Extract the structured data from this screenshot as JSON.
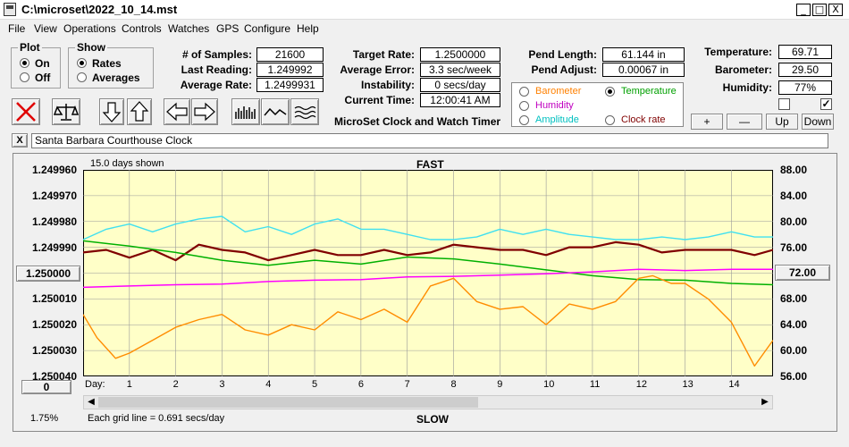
{
  "window": {
    "title": "C:\\microset\\2022_10_14.mst",
    "min_glyph": "_",
    "max_glyph": "□",
    "close_glyph": "X"
  },
  "menu": [
    "File",
    "View",
    "Operations",
    "Controls",
    "Watches",
    "GPS",
    "Configure",
    "Help"
  ],
  "plot_group": {
    "label": "Plot",
    "options": [
      "On",
      "Off"
    ],
    "selected": "On"
  },
  "show_group": {
    "label": "Show",
    "options": [
      "Rates",
      "Averages"
    ],
    "selected": "Rates"
  },
  "stats": {
    "samples_label": "# of Samples:",
    "samples": "21600",
    "last_label": "Last Reading:",
    "last": "1.249992",
    "avg_rate_label": "Average Rate:",
    "avg_rate": "1.2499931",
    "target_label": "Target Rate:",
    "target": "1.2500000",
    "avg_err_label": "Average Error:",
    "avg_err": "3.3 sec/week",
    "instab_label": "Instability:",
    "instab": "0 secs/day",
    "time_label": "Current Time:",
    "time": "12:00:41 AM",
    "pend_len_label": "Pend Length:",
    "pend_len": "61.144 in",
    "pend_adj_label": "Pend Adjust:",
    "pend_adj": "0.00067 in",
    "temp_label": "Temperature:",
    "temp": "69.71",
    "baro_label": "Barometer:",
    "baro": "29.50",
    "humid_label": "Humidity:",
    "humid": "77%"
  },
  "app_title": "MicroSet Clock and Watch Timer",
  "sensor_options": [
    {
      "label": "Barometer",
      "color": "#ff8000",
      "selected": false
    },
    {
      "label": "Temperature",
      "color": "#00a000",
      "selected": true
    },
    {
      "label": "Humidity",
      "color": "#c000c0",
      "selected": false
    },
    {
      "label": "Amplitude",
      "color": "#00c0c0",
      "selected": false
    },
    {
      "label": "Clock rate",
      "color": "#800000",
      "selected": false
    }
  ],
  "scale_buttons": [
    "+",
    "—",
    "Up",
    "Down"
  ],
  "checkboxes": [
    false,
    true
  ],
  "clock_name": "Santa Barbara Courthouse Clock",
  "chart_panel": {
    "days_shown": "15.0 days shown",
    "top_label": "FAST",
    "bottom_label": "SLOW",
    "grid_note": "Each grid line = 0.691 secs/day",
    "day_label": "Day:",
    "left_button": "1.250000",
    "right_button": "72.00",
    "offset_button": "0",
    "percent": "1.75%"
  },
  "colors": {
    "plot_bg": "#ffffc8",
    "rate": "#800000",
    "temperature": "#00b000",
    "humidity": "#ff00ff",
    "amplitude": "#40e0f0",
    "barometer": "#ff8c00"
  },
  "chart_data": {
    "type": "line",
    "x_label": "Day:",
    "x_ticks": [
      1,
      2,
      3,
      4,
      5,
      6,
      7,
      8,
      9,
      10,
      11,
      12,
      13,
      14
    ],
    "xlim": [
      0,
      14.9
    ],
    "y_left_ticks": [
      "1.249960",
      "1.249970",
      "1.249980",
      "1.249990",
      "1.250000",
      "1.250010",
      "1.250020",
      "1.250030",
      "1.250040"
    ],
    "ylim_left": [
      1.24996,
      1.25004
    ],
    "y_right_ticks": [
      "88.00",
      "84.00",
      "80.00",
      "76.00",
      "72.00",
      "68.00",
      "64.00",
      "60.00",
      "56.00"
    ],
    "ylim_right": [
      56,
      88
    ],
    "grid": true,
    "series": [
      {
        "name": "Amplitude",
        "axis": "left",
        "x": [
          0,
          0.5,
          1,
          1.5,
          2,
          2.5,
          3,
          3.5,
          4,
          4.5,
          5,
          5.5,
          6,
          6.5,
          7,
          7.5,
          8,
          8.5,
          9,
          9.5,
          10,
          10.5,
          11,
          11.5,
          12,
          12.5,
          13,
          13.5,
          14,
          14.5,
          14.9
        ],
        "y": [
          1.249987,
          1.249983,
          1.249981,
          1.249984,
          1.249981,
          1.249979,
          1.249978,
          1.249984,
          1.249982,
          1.249985,
          1.249981,
          1.249979,
          1.249983,
          1.249983,
          1.249985,
          1.249987,
          1.249987,
          1.249986,
          1.249983,
          1.249985,
          1.249983,
          1.249985,
          1.249986,
          1.249987,
          1.249987,
          1.249986,
          1.249987,
          1.249986,
          1.249984,
          1.249986,
          1.249986
        ]
      },
      {
        "name": "Clock rate",
        "axis": "left",
        "x": [
          0,
          0.5,
          1,
          1.5,
          2,
          2.5,
          3,
          3.5,
          4,
          4.5,
          5,
          5.5,
          6,
          6.5,
          7,
          7.5,
          8,
          8.5,
          9,
          9.5,
          10,
          10.5,
          11,
          11.5,
          12,
          12.5,
          13,
          13.5,
          14,
          14.5,
          14.9
        ],
        "y": [
          1.249992,
          1.249991,
          1.249994,
          1.249991,
          1.249995,
          1.249989,
          1.249991,
          1.249992,
          1.249995,
          1.249993,
          1.249991,
          1.249993,
          1.249993,
          1.249991,
          1.249993,
          1.249992,
          1.249989,
          1.24999,
          1.249991,
          1.249991,
          1.249993,
          1.24999,
          1.24999,
          1.249988,
          1.249989,
          1.249992,
          1.249991,
          1.249991,
          1.249991,
          1.249993,
          1.249991
        ]
      },
      {
        "name": "Temperature",
        "axis": "right",
        "x": [
          0,
          1,
          2,
          3,
          4,
          5,
          6,
          7,
          8,
          9,
          10,
          11,
          12,
          13,
          14,
          14.9
        ],
        "y": [
          77.0,
          76.2,
          75.2,
          74.0,
          73.2,
          74.0,
          73.4,
          74.5,
          74.2,
          73.4,
          72.5,
          71.6,
          71.0,
          70.9,
          70.4,
          70.2
        ]
      },
      {
        "name": "Humidity",
        "axis": "right",
        "x": [
          0,
          1,
          2,
          3,
          4,
          5,
          6,
          7,
          8,
          9,
          10,
          11,
          12,
          13,
          14,
          14.9
        ],
        "y": [
          69.8,
          70.0,
          70.2,
          70.3,
          70.7,
          70.9,
          71.0,
          71.4,
          71.5,
          71.7,
          71.9,
          72.2,
          72.6,
          72.4,
          72.6,
          72.6
        ]
      },
      {
        "name": "Barometer",
        "axis": "left",
        "x": [
          0,
          0.3,
          0.7,
          1,
          1.5,
          2,
          2.5,
          3,
          3.5,
          4,
          4.5,
          5,
          5.5,
          6,
          6.5,
          7,
          7.5,
          8,
          8.5,
          9,
          9.5,
          10,
          10.5,
          11,
          11.5,
          12,
          12.3,
          12.7,
          13,
          13.5,
          14,
          14.5,
          14.9
        ],
        "y": [
          1.250016,
          1.250025,
          1.250033,
          1.250031,
          1.250026,
          1.250021,
          1.250018,
          1.250016,
          1.250022,
          1.250024,
          1.25002,
          1.250022,
          1.250015,
          1.250018,
          1.250014,
          1.250019,
          1.250005,
          1.250002,
          1.250011,
          1.250014,
          1.250013,
          1.25002,
          1.250012,
          1.250014,
          1.250011,
          1.250002,
          1.250001,
          1.250004,
          1.250004,
          1.25001,
          1.250019,
          1.250036,
          1.250026
        ]
      }
    ]
  }
}
